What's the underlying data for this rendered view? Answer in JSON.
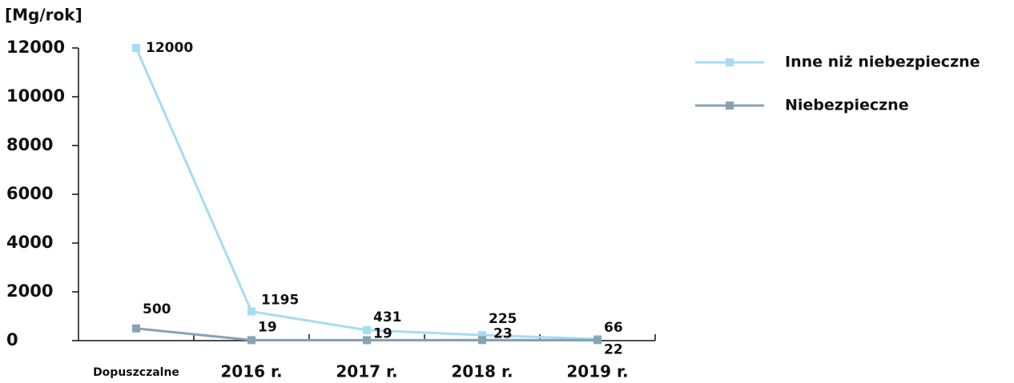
{
  "chart_data": {
    "type": "line",
    "y_axis_label": "[Mg/rok]",
    "categories": [
      "Dopuszczalne",
      "2016 r.",
      "2017 r.",
      "2018 r.",
      "2019 r."
    ],
    "series": [
      {
        "name": "Inne niż niebezpieczne",
        "color": "#a6dcf2",
        "values": [
          12000,
          1195,
          431,
          225,
          66
        ]
      },
      {
        "name": "Niebezpieczne",
        "color": "#86a3b5",
        "values": [
          500,
          19,
          19,
          23,
          22
        ]
      }
    ],
    "ylim": [
      0,
      12000
    ],
    "yticks": [
      0,
      2000,
      4000,
      6000,
      8000,
      10000,
      12000
    ],
    "legend": "top-right"
  }
}
